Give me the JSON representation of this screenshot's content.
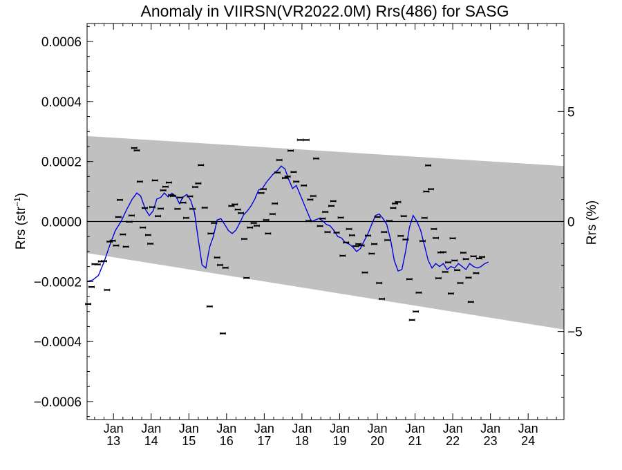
{
  "chart_data": {
    "type": "scatter",
    "title": "Anomaly in VIIRSN(VR2022.0M) Rrs(486) for SASG",
    "ylabel_base": "Rrs (str",
    "ylabel_sup": "−1",
    "ylabel_tail": ")",
    "y2label": "Rrs (%)",
    "xlim": [
      2012.3,
      2024.95
    ],
    "ylim": [
      -0.00066,
      0.00066
    ],
    "y2lim": [
      -9.0,
      9.0
    ],
    "x_ticks": [
      {
        "t": 2013,
        "month": "Jan",
        "year": "13"
      },
      {
        "t": 2014,
        "month": "Jan",
        "year": "14"
      },
      {
        "t": 2015,
        "month": "Jan",
        "year": "15"
      },
      {
        "t": 2016,
        "month": "Jan",
        "year": "16"
      },
      {
        "t": 2017,
        "month": "Jan",
        "year": "17"
      },
      {
        "t": 2018,
        "month": "Jan",
        "year": "18"
      },
      {
        "t": 2019,
        "month": "Jan",
        "year": "19"
      },
      {
        "t": 2020,
        "month": "Jan",
        "year": "20"
      },
      {
        "t": 2021,
        "month": "Jan",
        "year": "21"
      },
      {
        "t": 2022,
        "month": "Jan",
        "year": "22"
      },
      {
        "t": 2023,
        "month": "Jan",
        "year": "23"
      },
      {
        "t": 2024,
        "month": "Jan",
        "year": "24"
      }
    ],
    "y_ticks": [
      {
        "v": 0.0006,
        "label": "0.0006"
      },
      {
        "v": 0.0004,
        "label": "0.0004"
      },
      {
        "v": 0.0002,
        "label": "0.0002"
      },
      {
        "v": 0.0,
        "label": "0.0000"
      },
      {
        "v": -0.0002,
        "label": "−0.0002"
      },
      {
        "v": -0.0004,
        "label": "−0.0004"
      },
      {
        "v": -0.0006,
        "label": "−0.0006"
      }
    ],
    "y2_ticks": [
      {
        "v": 5,
        "label": "5"
      },
      {
        "v": 0,
        "label": "0"
      },
      {
        "v": -5,
        "label": "−5"
      }
    ],
    "band": {
      "upper": [
        [
          2012.3,
          0.000285
        ],
        [
          2024.95,
          0.000185
        ]
      ],
      "lower": [
        [
          2012.3,
          -0.000105
        ],
        [
          2024.95,
          -0.00036
        ]
      ]
    },
    "points": [
      [
        2012.33,
        -0.000275
      ],
      [
        2012.42,
        -0.000218
      ],
      [
        2012.5,
        -0.000142
      ],
      [
        2012.58,
        -0.000143
      ],
      [
        2012.67,
        -0.000133
      ],
      [
        2012.75,
        -0.000132
      ],
      [
        2012.83,
        -0.000228
      ],
      [
        2012.9,
        -6.7e-05
      ],
      [
        2012.98,
        -6.4e-05
      ],
      [
        2013.07,
        -8e-05
      ],
      [
        2013.13,
        1.5e-05
      ],
      [
        2013.17,
        7.2e-05
      ],
      [
        2013.25,
        -4.3e-05
      ],
      [
        2013.33,
        -8.4e-05
      ],
      [
        2013.42,
        -1e-06
      ],
      [
        2013.48,
        2e-05
      ],
      [
        2013.55,
        0.000245
      ],
      [
        2013.62,
        0.000237
      ],
      [
        2013.7,
        0.000133
      ],
      [
        2013.78,
        -2e-05
      ],
      [
        2013.83,
        4.5e-05
      ],
      [
        2013.92,
        -4.5e-05
      ],
      [
        2013.98,
        -7.4e-05
      ],
      [
        2014.03,
        4.8e-05
      ],
      [
        2014.1,
        0.000137
      ],
      [
        2014.18,
        1.8e-05
      ],
      [
        2014.25,
        4.3e-05
      ],
      [
        2014.32,
        0.000104
      ],
      [
        2014.38,
        0.000116
      ],
      [
        2014.47,
        0.00013
      ],
      [
        2014.53,
        8.8e-05
      ],
      [
        2014.58,
        8.5e-05
      ],
      [
        2014.7,
        4.2e-05
      ],
      [
        2014.77,
        8e-05
      ],
      [
        2014.85,
        6.3e-05
      ],
      [
        2014.93,
        1.2e-05
      ],
      [
        2015.03,
        8.4e-05
      ],
      [
        2015.1,
        4.2e-05
      ],
      [
        2015.17,
        0.000115
      ],
      [
        2015.25,
        0.000127
      ],
      [
        2015.32,
        0.000188
      ],
      [
        2015.42,
        4.6e-05
      ],
      [
        2015.58,
        -4e-05
      ],
      [
        2015.67,
        -5e-06
      ],
      [
        2015.75,
        -0.00012
      ],
      [
        2015.83,
        -0.000145
      ],
      [
        2015.9,
        -0.000373
      ],
      [
        2015.97,
        -0.000154
      ],
      [
        2015.55,
        -0.000283
      ],
      [
        2016.13,
        5.2e-05
      ],
      [
        2016.22,
        5.7e-05
      ],
      [
        2016.3,
        4e-05
      ],
      [
        2016.38,
        2.8e-05
      ],
      [
        2016.47,
        -5.8e-05
      ],
      [
        2016.53,
        -0.000188
      ],
      [
        2016.62,
        -2e-05
      ],
      [
        2016.72,
        -5e-06
      ],
      [
        2016.8,
        -1.4e-05
      ],
      [
        2016.92,
        9.5e-05
      ],
      [
        2016.98,
        0.000108
      ],
      [
        2017.05,
        5e-06
      ],
      [
        2017.1,
        -4e-05
      ],
      [
        2017.22,
        2.5e-05
      ],
      [
        2017.28,
        6e-05
      ],
      [
        2017.35,
        0.000163
      ],
      [
        2017.4,
        0.000205
      ],
      [
        2017.55,
        0.000145
      ],
      [
        2017.62,
        0.00015
      ],
      [
        2017.7,
        0.000236
      ],
      [
        2017.78,
        0.000165
      ],
      [
        2017.85,
        0.000133
      ],
      [
        2017.95,
        0.000272
      ],
      [
        2018.05,
        0.00012
      ],
      [
        2018.12,
        0.000272
      ],
      [
        2018.18,
        2e-06
      ],
      [
        2018.22,
        7.3e-05
      ],
      [
        2018.3,
        8.5e-05
      ],
      [
        2018.38,
        0.00021
      ],
      [
        2018.48,
        -1.5e-05
      ],
      [
        2018.55,
        1e-05
      ],
      [
        2018.62,
        3.2e-05
      ],
      [
        2018.68,
        -3.5e-05
      ],
      [
        2018.78,
        5.2e-05
      ],
      [
        2018.83,
        6.8e-05
      ],
      [
        2018.92,
        -3.7e-05
      ],
      [
        2019.03,
        1.3e-05
      ],
      [
        2019.08,
        -0.000114
      ],
      [
        2019.17,
        -7e-05
      ],
      [
        2019.25,
        -2.5e-05
      ],
      [
        2019.33,
        -4.6e-05
      ],
      [
        2019.42,
        -8.2e-05
      ],
      [
        2019.5,
        -7.5e-05
      ],
      [
        2019.58,
        -8e-05
      ],
      [
        2019.67,
        -0.00017
      ],
      [
        2019.75,
        -4.7e-05
      ],
      [
        2019.85,
        -0.000107
      ],
      [
        2019.92,
        -7.5e-05
      ],
      [
        2020.0,
        1.5e-05
      ],
      [
        2020.05,
        -0.000205
      ],
      [
        2020.12,
        -0.000258
      ],
      [
        2020.18,
        -3.5e-05
      ],
      [
        2020.27,
        -6.2e-05
      ],
      [
        2020.32,
        2e-06
      ],
      [
        2020.42,
        4.5e-05
      ],
      [
        2020.47,
        6e-05
      ],
      [
        2020.55,
        6.5e-05
      ],
      [
        2020.62,
        -4.8e-05
      ],
      [
        2020.7,
        1.8e-05
      ],
      [
        2020.75,
        -6e-05
      ],
      [
        2020.85,
        -0.000192
      ],
      [
        2020.92,
        -0.000328
      ],
      [
        2021.02,
        -0.0003
      ],
      [
        2021.1,
        -0.000237
      ],
      [
        2021.2,
        -6.5e-05
      ],
      [
        2021.25,
        1.2e-05
      ],
      [
        2021.3,
        0.0001
      ],
      [
        2021.35,
        0.000187
      ],
      [
        2021.42,
        0.000108
      ],
      [
        2021.5,
        -2.5e-05
      ],
      [
        2021.55,
        -5.5e-05
      ],
      [
        2021.62,
        -0.000189
      ],
      [
        2021.68,
        -0.000103
      ],
      [
        2021.75,
        -0.000102
      ],
      [
        2021.8,
        -0.000168
      ],
      [
        2021.88,
        -0.000136
      ],
      [
        2021.95,
        -0.00024
      ],
      [
        2022.0,
        -5.6e-05
      ],
      [
        2022.05,
        -0.00013
      ],
      [
        2022.12,
        -0.000162
      ],
      [
        2022.2,
        -0.000205
      ],
      [
        2022.28,
        -0.000104
      ],
      [
        2022.35,
        -0.000125
      ],
      [
        2022.42,
        -0.000187
      ],
      [
        2022.48,
        -0.000268
      ],
      [
        2022.55,
        -0.000116
      ],
      [
        2022.62,
        -0.000172
      ],
      [
        2022.7,
        -0.000123
      ],
      [
        2022.78,
        -0.000118
      ]
    ],
    "smoothed_line": [
      [
        2012.3,
        -0.0002
      ],
      [
        2012.45,
        -0.000195
      ],
      [
        2012.6,
        -0.00018
      ],
      [
        2012.75,
        -0.000135
      ],
      [
        2012.9,
        -8e-05
      ],
      [
        2013.05,
        -3e-05
      ],
      [
        2013.2,
        0.0
      ],
      [
        2013.35,
        4e-05
      ],
      [
        2013.5,
        7.5e-05
      ],
      [
        2013.62,
        9.5e-05
      ],
      [
        2013.72,
        8.5e-05
      ],
      [
        2013.85,
        4e-05
      ],
      [
        2013.95,
        2e-05
      ],
      [
        2014.05,
        3.5e-05
      ],
      [
        2014.15,
        7.5e-05
      ],
      [
        2014.25,
        8e-05
      ],
      [
        2014.35,
        9.5e-05
      ],
      [
        2014.45,
        8.2e-05
      ],
      [
        2014.55,
        9.4e-05
      ],
      [
        2014.65,
        8.5e-05
      ],
      [
        2014.75,
        6e-05
      ],
      [
        2014.85,
        8.2e-05
      ],
      [
        2014.95,
        9e-05
      ],
      [
        2015.05,
        7e-05
      ],
      [
        2015.15,
        3e-05
      ],
      [
        2015.25,
        -6e-05
      ],
      [
        2015.35,
        -0.000145
      ],
      [
        2015.45,
        -0.000155
      ],
      [
        2015.55,
        -8.5e-05
      ],
      [
        2015.65,
        -5e-05
      ],
      [
        2015.75,
        5e-06
      ],
      [
        2015.85,
        1e-05
      ],
      [
        2015.95,
        -1e-05
      ],
      [
        2016.05,
        -3e-05
      ],
      [
        2016.15,
        -4e-05
      ],
      [
        2016.25,
        -2.8e-05
      ],
      [
        2016.35,
        -5e-06
      ],
      [
        2016.45,
        2.2e-05
      ],
      [
        2016.55,
        3.5e-05
      ],
      [
        2016.65,
        5.2e-05
      ],
      [
        2016.75,
        7.5e-05
      ],
      [
        2016.85,
        0.000105
      ],
      [
        2016.95,
        0.00011
      ],
      [
        2017.05,
        0.00013
      ],
      [
        2017.15,
        0.000145
      ],
      [
        2017.25,
        0.00016
      ],
      [
        2017.35,
        0.00017
      ],
      [
        2017.45,
        0.000185
      ],
      [
        2017.55,
        0.000175
      ],
      [
        2017.65,
        0.00014
      ],
      [
        2017.75,
        0.00011
      ],
      [
        2017.85,
        0.00012
      ],
      [
        2017.95,
        9e-05
      ],
      [
        2018.05,
        6e-05
      ],
      [
        2018.15,
        3e-05
      ],
      [
        2018.25,
        0.0
      ],
      [
        2018.35,
        5e-06
      ],
      [
        2018.45,
        1e-05
      ],
      [
        2018.55,
        2e-06
      ],
      [
        2018.65,
        -1e-05
      ],
      [
        2018.75,
        -1.5e-05
      ],
      [
        2018.85,
        -3e-05
      ],
      [
        2018.95,
        -5e-05
      ],
      [
        2019.05,
        -5.5e-05
      ],
      [
        2019.15,
        -7e-05
      ],
      [
        2019.25,
        -7.5e-05
      ],
      [
        2019.35,
        -8.5e-05
      ],
      [
        2019.45,
        -0.0001
      ],
      [
        2019.55,
        -9e-05
      ],
      [
        2019.65,
        -6.5e-05
      ],
      [
        2019.75,
        -4e-05
      ],
      [
        2019.85,
        -1e-05
      ],
      [
        2019.95,
        2e-05
      ],
      [
        2020.05,
        2.5e-05
      ],
      [
        2020.15,
        1e-05
      ],
      [
        2020.25,
        -1e-05
      ],
      [
        2020.35,
        -6e-05
      ],
      [
        2020.45,
        -0.00013
      ],
      [
        2020.55,
        -0.000165
      ],
      [
        2020.65,
        -0.00016
      ],
      [
        2020.75,
        -0.0001
      ],
      [
        2020.85,
        -2e-05
      ],
      [
        2020.95,
        2e-05
      ],
      [
        2021.05,
        0.0
      ],
      [
        2021.15,
        -3e-05
      ],
      [
        2021.25,
        -8e-05
      ],
      [
        2021.35,
        -0.00013
      ],
      [
        2021.45,
        -0.000155
      ],
      [
        2021.55,
        -0.00014
      ],
      [
        2021.65,
        -0.00015
      ],
      [
        2021.75,
        -0.00014
      ],
      [
        2021.85,
        -0.00016
      ],
      [
        2021.95,
        -0.00015
      ],
      [
        2022.05,
        -0.000155
      ],
      [
        2022.15,
        -0.00014
      ],
      [
        2022.25,
        -0.00015
      ],
      [
        2022.35,
        -0.00016
      ],
      [
        2022.45,
        -0.00014
      ],
      [
        2022.55,
        -0.00015
      ],
      [
        2022.65,
        -0.000155
      ],
      [
        2022.75,
        -0.00015
      ],
      [
        2022.85,
        -0.00014
      ],
      [
        2022.95,
        -0.000135
      ]
    ],
    "line_color": "#0000dd",
    "band_color": "#c0c0c0",
    "point_color": "#000000",
    "grid": false,
    "legend": "none"
  }
}
